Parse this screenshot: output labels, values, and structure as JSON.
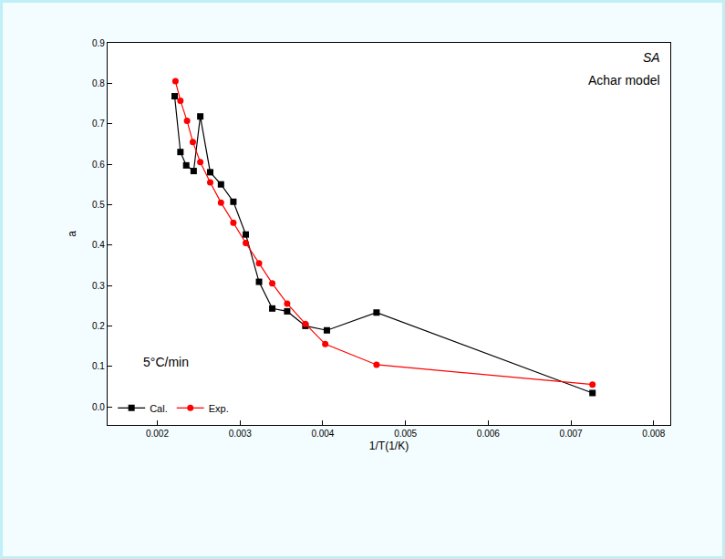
{
  "chart_data": {
    "type": "line",
    "annotations": [
      "SA",
      "Achar model",
      "5°C/min"
    ],
    "x_label": "1/T(1/K)",
    "y_label": "a",
    "xlim": [
      0.0014,
      0.0082
    ],
    "xticks": [
      0.002,
      0.003,
      0.004,
      0.005,
      0.006,
      0.007,
      0.008
    ],
    "ylim": [
      -0.045,
      0.9
    ],
    "yticks": [
      {
        "value": 0,
        "label": "0.0"
      },
      0.1,
      0.2,
      0.3,
      0.4,
      0.5,
      0.6,
      0.7,
      0.8,
      0.9
    ],
    "grid": false,
    "legend": "bottom left",
    "series": [
      {
        "name": "Cal.",
        "color": "#000000",
        "marker": "square",
        "x": [
          0.00221,
          0.00228,
          0.00235,
          0.00244,
          0.00252,
          0.00264,
          0.00277,
          0.00292,
          0.00307,
          0.00323,
          0.00339,
          0.00357,
          0.00379,
          0.00405,
          0.00465,
          0.00726
        ],
        "values": [
          0.768,
          0.63,
          0.597,
          0.583,
          0.718,
          0.58,
          0.55,
          0.507,
          0.426,
          0.309,
          0.243,
          0.236,
          0.2,
          0.189,
          0.233,
          0.034
        ]
      },
      {
        "name": "Exp.",
        "color": "#ff0000",
        "marker": "circle",
        "x": [
          0.00222,
          0.00228,
          0.00236,
          0.00243,
          0.00252,
          0.00264,
          0.00277,
          0.00292,
          0.00307,
          0.00323,
          0.00339,
          0.00357,
          0.00379,
          0.00403,
          0.00465,
          0.00726
        ],
        "values": [
          0.805,
          0.757,
          0.707,
          0.655,
          0.605,
          0.555,
          0.505,
          0.455,
          0.405,
          0.355,
          0.305,
          0.255,
          0.205,
          0.155,
          0.104,
          0.055
        ]
      }
    ]
  }
}
